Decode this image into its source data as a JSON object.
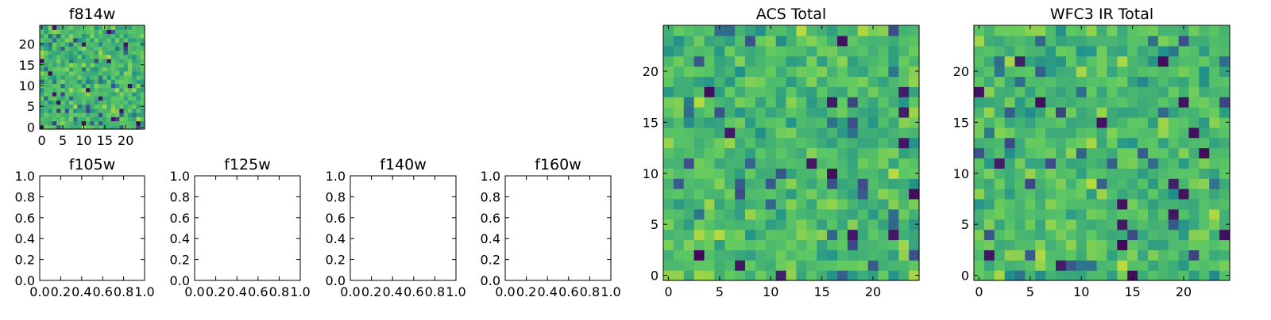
{
  "chart_data": [
    {
      "type": "heatmap",
      "title": "f814w",
      "xlabel": "",
      "ylabel": "",
      "grid_size": 25,
      "xlim": [
        -0.5,
        24.5
      ],
      "ylim": [
        -0.5,
        24.5
      ],
      "xticks": [
        0,
        5,
        10,
        15,
        20
      ],
      "yticks": [
        0,
        5,
        10,
        15,
        20
      ],
      "colormap": "viridis",
      "color_range": [
        0,
        1
      ],
      "values_source": "25x25 pixel image with noise-like values (approximate, generated pattern)",
      "seed": 814
    },
    {
      "type": "empty",
      "title": "f105w",
      "xlim": [
        0,
        1
      ],
      "ylim": [
        0,
        1
      ],
      "xticks": [
        "0.0",
        "0.2",
        "0.4",
        "0.6",
        "0.8",
        "1.0"
      ],
      "yticks": [
        "0.0",
        "0.2",
        "0.4",
        "0.6",
        "0.8",
        "1.0"
      ]
    },
    {
      "type": "empty",
      "title": "f125w",
      "xlim": [
        0,
        1
      ],
      "ylim": [
        0,
        1
      ],
      "xticks": [
        "0.0",
        "0.2",
        "0.4",
        "0.6",
        "0.8",
        "1.0"
      ],
      "yticks": [
        "0.0",
        "0.2",
        "0.4",
        "0.6",
        "0.8",
        "1.0"
      ]
    },
    {
      "type": "empty",
      "title": "f140w",
      "xlim": [
        0,
        1
      ],
      "ylim": [
        0,
        1
      ],
      "xticks": [
        "0.0",
        "0.2",
        "0.4",
        "0.6",
        "0.8",
        "1.0"
      ],
      "yticks": [
        "0.0",
        "0.2",
        "0.4",
        "0.6",
        "0.8",
        "1.0"
      ]
    },
    {
      "type": "empty",
      "title": "f160w",
      "xlim": [
        0,
        1
      ],
      "ylim": [
        0,
        1
      ],
      "xticks": [
        "0.0",
        "0.2",
        "0.4",
        "0.6",
        "0.8",
        "1.0"
      ],
      "yticks": [
        "0.0",
        "0.2",
        "0.4",
        "0.6",
        "0.8",
        "1.0"
      ]
    },
    {
      "type": "heatmap",
      "title": "ACS Total",
      "xlabel": "",
      "ylabel": "",
      "grid_size": 25,
      "xlim": [
        -0.5,
        24.5
      ],
      "ylim": [
        -0.5,
        24.5
      ],
      "xticks": [
        0,
        5,
        10,
        15,
        20
      ],
      "yticks": [
        0,
        5,
        10,
        15,
        20
      ],
      "colormap": "viridis",
      "color_range": [
        0,
        1
      ],
      "values_source": "25x25 pixel image with noise-like values (approximate, generated pattern)",
      "seed": 2718
    },
    {
      "type": "heatmap",
      "title": "WFC3 IR Total",
      "xlabel": "",
      "ylabel": "",
      "grid_size": 25,
      "xlim": [
        -0.5,
        24.5
      ],
      "ylim": [
        -0.5,
        24.5
      ],
      "xticks": [
        0,
        5,
        10,
        15,
        20
      ],
      "yticks": [
        0,
        5,
        10,
        15,
        20
      ],
      "colormap": "viridis",
      "color_range": [
        0,
        1
      ],
      "values_source": "25x25 pixel image with noise-like values (approximate, generated pattern)",
      "seed": 3141
    }
  ],
  "colors": {
    "viridis_stops": [
      "#440154",
      "#3b528b",
      "#21918c",
      "#5ec962",
      "#fde725"
    ],
    "axis": "#000000",
    "background": "#ffffff"
  }
}
